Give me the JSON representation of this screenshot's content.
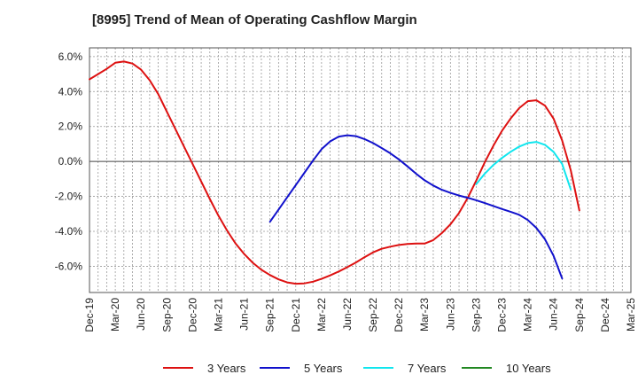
{
  "title": "[8995]  Trend of Mean of Operating Cashflow Margin",
  "chart_data": {
    "type": "line",
    "title": "[8995]  Trend of Mean of Operating Cashflow Margin",
    "xlabel": "",
    "ylabel": "",
    "ylim": [
      -7.5,
      6.5
    ],
    "yticks": [
      6,
      4,
      2,
      0,
      -2,
      -4,
      -6
    ],
    "ytick_labels": [
      "6.0%",
      "4.0%",
      "2.0%",
      "0.0%",
      "-2.0%",
      "-4.0%",
      "-6.0%"
    ],
    "x_tick_labels": [
      "Dec-19",
      "Mar-20",
      "Jun-20",
      "Sep-20",
      "Dec-20",
      "Mar-21",
      "Jun-21",
      "Sep-21",
      "Dec-21",
      "Mar-22",
      "Jun-22",
      "Sep-22",
      "Dec-22",
      "Mar-23",
      "Jun-23",
      "Sep-23",
      "Dec-23",
      "Mar-24",
      "Jun-24",
      "Sep-24",
      "Dec-24",
      "Mar-25"
    ],
    "grid": true,
    "legend_position": "bottom",
    "series": [
      {
        "name": "3 Years",
        "color": "#dd1111",
        "start_index": 0,
        "values": [
          4.7,
          5.0,
          5.3,
          5.65,
          5.72,
          5.6,
          5.25,
          4.65,
          3.85,
          2.85,
          1.85,
          0.85,
          -0.15,
          -1.15,
          -2.15,
          -3.1,
          -3.95,
          -4.7,
          -5.3,
          -5.8,
          -6.2,
          -6.5,
          -6.75,
          -6.92,
          -7.0,
          -6.98,
          -6.88,
          -6.72,
          -6.52,
          -6.3,
          -6.05,
          -5.78,
          -5.48,
          -5.2,
          -5.0,
          -4.88,
          -4.78,
          -4.72,
          -4.7,
          -4.7,
          -4.5,
          -4.1,
          -3.6,
          -2.95,
          -2.1,
          -1.1,
          -0.05,
          0.9,
          1.75,
          2.45,
          3.05,
          3.45,
          3.5,
          3.2,
          2.45,
          1.2,
          -0.5,
          -2.8
        ]
      },
      {
        "name": "5 Years",
        "color": "#1111cc",
        "start_index": 21,
        "values": [
          -3.45,
          -2.75,
          -2.05,
          -1.35,
          -0.65,
          0.05,
          0.7,
          1.15,
          1.42,
          1.5,
          1.45,
          1.28,
          1.05,
          0.77,
          0.47,
          0.12,
          -0.28,
          -0.7,
          -1.08,
          -1.38,
          -1.62,
          -1.8,
          -1.95,
          -2.08,
          -2.22,
          -2.38,
          -2.55,
          -2.72,
          -2.88,
          -3.05,
          -3.35,
          -3.8,
          -4.45,
          -5.4,
          -6.7
        ]
      },
      {
        "name": "7 Years",
        "color": "#11e6ee",
        "start_index": 45,
        "values": [
          -1.3,
          -0.7,
          -0.2,
          0.2,
          0.55,
          0.85,
          1.05,
          1.12,
          0.95,
          0.55,
          -0.15,
          -1.6
        ]
      },
      {
        "name": "10 Years",
        "color": "#228822",
        "start_index": 0,
        "values": []
      }
    ]
  }
}
